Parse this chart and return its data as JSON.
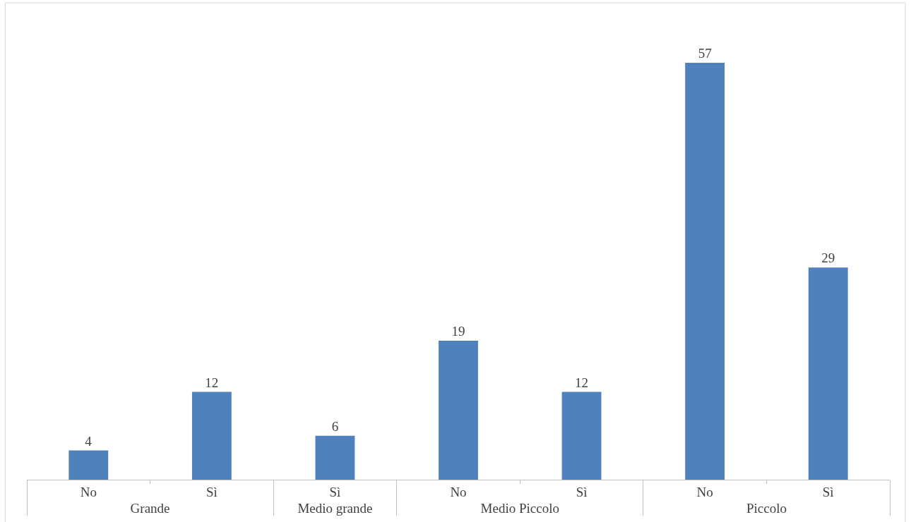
{
  "chart_data": {
    "type": "bar",
    "categories": [
      [
        "Grande",
        "No"
      ],
      [
        null,
        "Sì"
      ],
      [
        "Medio grande",
        "Sì"
      ],
      [
        "Medio Piccolo",
        "No"
      ],
      [
        null,
        "Sì"
      ],
      [
        "Piccolo",
        "No"
      ],
      [
        null,
        "Sì"
      ]
    ],
    "values": [
      4,
      12,
      6,
      19,
      12,
      57,
      29
    ],
    "color": "#4f81bd",
    "data_labels": true
  }
}
